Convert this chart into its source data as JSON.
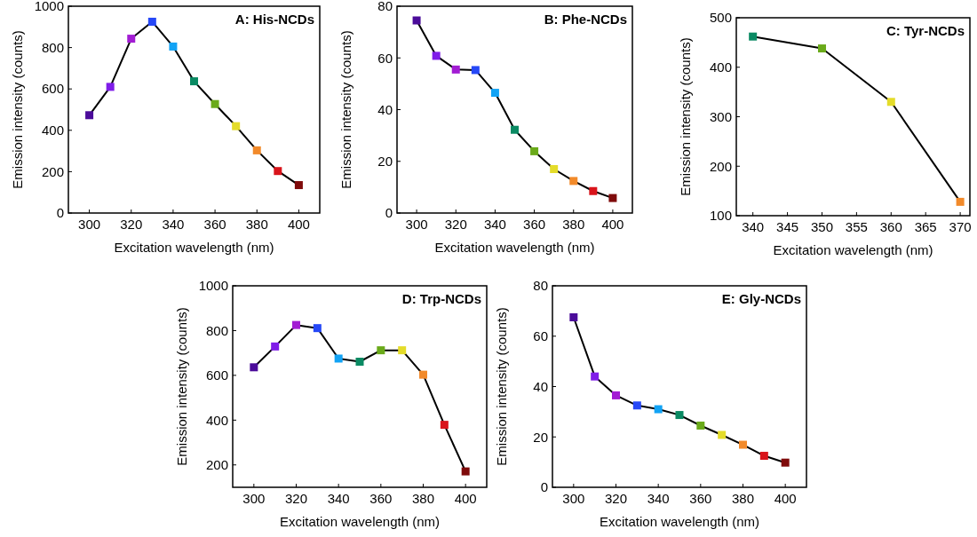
{
  "chart_data": [
    {
      "type": "line",
      "title": "A: His-NCDs",
      "xlabel": "Excitation wavelength (nm)",
      "ylabel": "Emission intensity (counts)",
      "x": [
        300,
        310,
        320,
        330,
        340,
        350,
        360,
        370,
        380,
        390,
        400
      ],
      "values": [
        473,
        610,
        843,
        925,
        805,
        637,
        527,
        420,
        303,
        203,
        135
      ],
      "color": "#000000",
      "colors": [
        "#4b0c9a",
        "#7f1de8",
        "#a21cd3",
        "#2648f7",
        "#12a3f5",
        "#0a8a63",
        "#6aaa1a",
        "#e4dc2a",
        "#f28a2a",
        "#d9141b",
        "#7f0b0b"
      ],
      "xlim": [
        290,
        410
      ],
      "xticks": [
        300,
        320,
        340,
        360,
        380,
        400
      ],
      "ylim": [
        0,
        1000
      ],
      "yticks": [
        0,
        200,
        400,
        600,
        800,
        1000
      ],
      "marker": "square",
      "line_style": "solid"
    },
    {
      "type": "line",
      "title": "B: Phe-NCDs",
      "xlabel": "Excitation wavelength (nm)",
      "ylabel": "Emission intensity (counts)",
      "x": [
        300,
        310,
        320,
        330,
        340,
        350,
        360,
        370,
        380,
        390,
        400
      ],
      "values": [
        74.5,
        60.8,
        55.5,
        55.3,
        46.5,
        32.2,
        23.9,
        17.0,
        12.4,
        8.5,
        5.8
      ],
      "color": "#000000",
      "colors": [
        "#4b0c9a",
        "#7f1de8",
        "#a21cd3",
        "#2648f7",
        "#12a3f5",
        "#0a8a63",
        "#6aaa1a",
        "#e4dc2a",
        "#f28a2a",
        "#d9141b",
        "#7f0b0b"
      ],
      "xlim": [
        290,
        410
      ],
      "xticks": [
        300,
        320,
        340,
        360,
        380,
        400
      ],
      "ylim": [
        0,
        80
      ],
      "yticks": [
        0,
        20,
        40,
        60,
        80
      ],
      "marker": "square",
      "line_style": "solid"
    },
    {
      "type": "line",
      "title": "C: Tyr-NCDs",
      "xlabel": "Excitation wavelength (nm)",
      "ylabel": "Emission intensity (counts)",
      "x": [
        340,
        350,
        360,
        370
      ],
      "values": [
        462,
        438,
        330,
        128
      ],
      "color": "#000000",
      "colors": [
        "#0a8a63",
        "#6aaa1a",
        "#e4dc2a",
        "#f28a2a"
      ],
      "xlim": [
        337.6,
        371.4
      ],
      "xticks": [
        340,
        345,
        350,
        355,
        360,
        365,
        370
      ],
      "ylim": [
        100,
        500
      ],
      "yticks": [
        100,
        200,
        300,
        400,
        500
      ],
      "marker": "square",
      "line_style": "solid"
    },
    {
      "type": "line",
      "title": "D: Trp-NCDs",
      "xlabel": "Excitation wavelength (nm)",
      "ylabel": "Emission intensity (counts)",
      "x": [
        300,
        310,
        320,
        330,
        340,
        350,
        360,
        370,
        380,
        390,
        400
      ],
      "values": [
        636,
        729,
        825,
        811,
        675,
        661,
        712,
        712,
        603,
        379,
        171
      ],
      "color": "#000000",
      "colors": [
        "#4b0c9a",
        "#7f1de8",
        "#a21cd3",
        "#2648f7",
        "#12a3f5",
        "#0a8a63",
        "#6aaa1a",
        "#e4dc2a",
        "#f28a2a",
        "#d9141b",
        "#7f0b0b"
      ],
      "xlim": [
        290,
        410
      ],
      "xticks": [
        300,
        320,
        340,
        360,
        380,
        400
      ],
      "ylim": [
        100,
        1000
      ],
      "yticks": [
        200,
        400,
        600,
        800,
        1000
      ],
      "marker": "square",
      "line_style": "solid"
    },
    {
      "type": "line",
      "title": "E: Gly-NCDs",
      "xlabel": "Excitation wavelength (nm)",
      "ylabel": "Emission intensity (counts)",
      "x": [
        300,
        310,
        320,
        330,
        340,
        350,
        360,
        370,
        380,
        390,
        400
      ],
      "values": [
        67.5,
        44,
        36.5,
        32.5,
        31,
        28.7,
        24.5,
        20.8,
        16.9,
        12.5,
        9.8
      ],
      "color": "#000000",
      "colors": [
        "#4b0c9a",
        "#7f1de8",
        "#a21cd3",
        "#2648f7",
        "#12a3f5",
        "#0a8a63",
        "#6aaa1a",
        "#e4dc2a",
        "#f28a2a",
        "#d9141b",
        "#7f0b0b"
      ],
      "xlim": [
        290,
        410
      ],
      "xticks": [
        300,
        320,
        340,
        360,
        380,
        400
      ],
      "ylim": [
        0,
        80
      ],
      "yticks": [
        0,
        20,
        40,
        60,
        80
      ],
      "marker": "square",
      "line_style": "solid"
    }
  ]
}
